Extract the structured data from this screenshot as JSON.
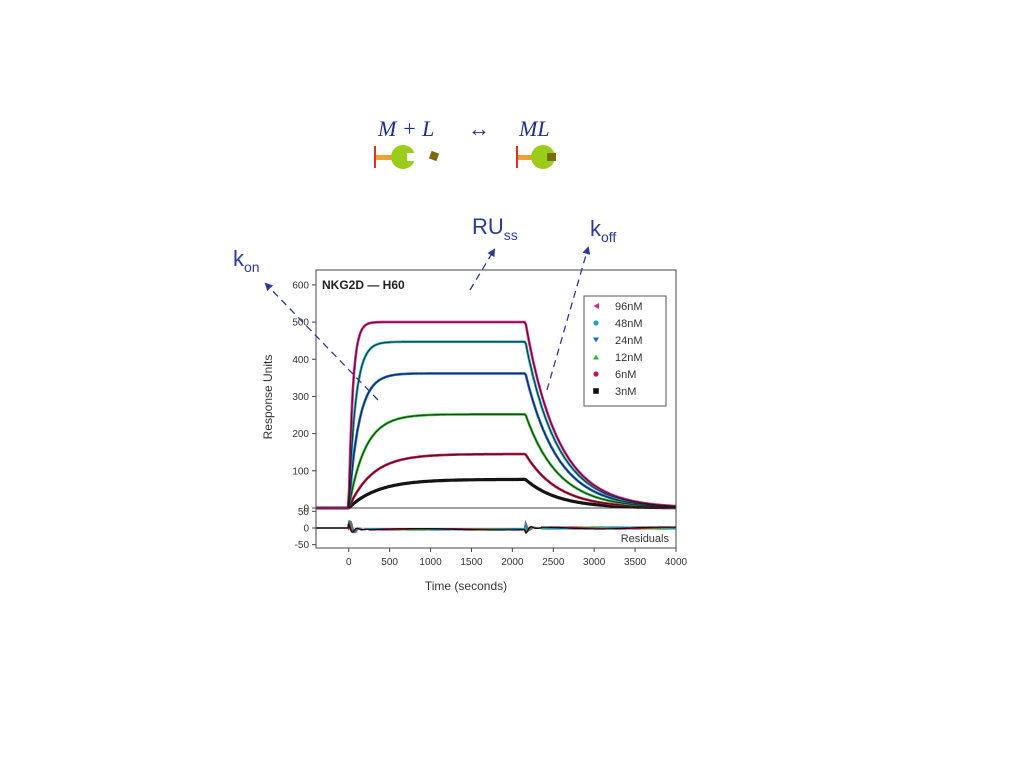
{
  "equation": {
    "left": "M + L",
    "arrow": "↔",
    "right": "ML"
  },
  "annotations": {
    "kon": {
      "main": "k",
      "sub": "on"
    },
    "russ": {
      "main": "RU",
      "sub": "ss"
    },
    "koff": {
      "main": "k",
      "sub": "off"
    }
  },
  "colors": {
    "annotation": "#2b3a9a",
    "receptor_stem": "#f0a030",
    "receptor_head": "#9acd1a",
    "ligand": "#7a6a10"
  },
  "chart_data": {
    "type": "line",
    "title": "NKG2D — H60",
    "xlabel": "Time (seconds)",
    "ylabel": "Response Units",
    "xlim": [
      -400,
      4000
    ],
    "ylim": [
      0,
      640
    ],
    "xticks": [
      0,
      500,
      1000,
      1500,
      2000,
      2500,
      3000,
      3500,
      4000
    ],
    "yticks": [
      0,
      100,
      200,
      300,
      400,
      500,
      600
    ],
    "association_start": 0,
    "dissociation_start": 2160,
    "legend_position": "right",
    "series": [
      {
        "name": "96nM",
        "color": "#e0208a",
        "marker": "triangle-left",
        "steady_state": 500,
        "kobs": 0.02
      },
      {
        "name": "48nM",
        "color": "#20a8b8",
        "marker": "circle",
        "steady_state": 447,
        "kobs": 0.012
      },
      {
        "name": "24nM",
        "color": "#2266cc",
        "marker": "triangle-down",
        "steady_state": 362,
        "kobs": 0.008
      },
      {
        "name": "12nM",
        "color": "#2eb82e",
        "marker": "triangle-up",
        "steady_state": 252,
        "kobs": 0.005
      },
      {
        "name": "6nM",
        "color": "#cc1144",
        "marker": "circle",
        "steady_state": 145,
        "kobs": 0.0035
      },
      {
        "name": "3nM",
        "color": "#111111",
        "marker": "square",
        "steady_state": 77,
        "kobs": 0.0028
      }
    ],
    "koff": 0.0025,
    "residuals": {
      "label": "Residuals",
      "ylim": [
        -60,
        60
      ],
      "yticks": [
        50,
        0,
        -50
      ]
    }
  }
}
